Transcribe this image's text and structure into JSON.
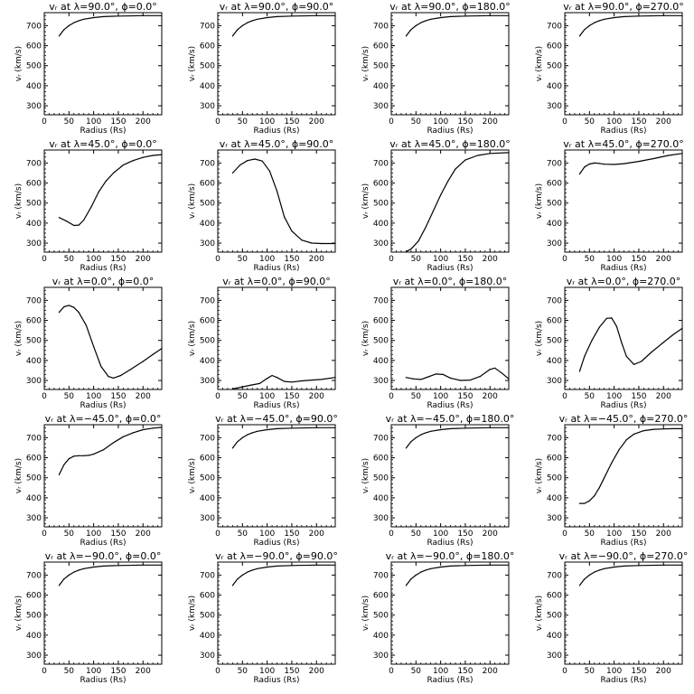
{
  "shared_axes": {
    "xlabel": "Radius (Rs)",
    "ylabel": "vᵣ (km/s)",
    "xlim": [
      0,
      238
    ],
    "ylim": [
      255,
      765
    ],
    "xticks": [
      "0",
      "50",
      "100",
      "150",
      "200"
    ],
    "yticks": [
      "300",
      "400",
      "500",
      "600",
      "700"
    ]
  },
  "chart_data": [
    {
      "type": "line",
      "title": "vᵣ at λ=90.0°, ϕ=0.0°",
      "xlabel": "Radius (Rs)",
      "ylabel": "vᵣ (km/s)",
      "xlim": [
        0,
        238
      ],
      "ylim": [
        255,
        765
      ],
      "x": [
        30,
        40,
        50,
        60,
        70,
        80,
        100,
        120,
        150,
        200,
        238
      ],
      "y": [
        648,
        680,
        700,
        715,
        725,
        732,
        740,
        745,
        748,
        750,
        750
      ]
    },
    {
      "type": "line",
      "title": "vᵣ at λ=90.0°, ϕ=90.0°",
      "xlabel": "Radius (Rs)",
      "ylabel": "vᵣ (km/s)",
      "xlim": [
        0,
        238
      ],
      "ylim": [
        255,
        765
      ],
      "x": [
        30,
        40,
        50,
        60,
        70,
        80,
        100,
        120,
        150,
        200,
        238
      ],
      "y": [
        648,
        680,
        700,
        715,
        725,
        732,
        740,
        745,
        748,
        750,
        750
      ]
    },
    {
      "type": "line",
      "title": "vᵣ at λ=90.0°, ϕ=180.0°",
      "xlabel": "Radius (Rs)",
      "ylabel": "vᵣ (km/s)",
      "xlim": [
        0,
        238
      ],
      "ylim": [
        255,
        765
      ],
      "x": [
        30,
        40,
        50,
        60,
        70,
        80,
        100,
        120,
        150,
        200,
        238
      ],
      "y": [
        648,
        680,
        700,
        715,
        725,
        732,
        740,
        745,
        748,
        750,
        750
      ]
    },
    {
      "type": "line",
      "title": "vᵣ at λ=90.0°, ϕ=270.0°",
      "xlabel": "Radius (Rs)",
      "ylabel": "vᵣ (km/s)",
      "xlim": [
        0,
        238
      ],
      "ylim": [
        255,
        765
      ],
      "x": [
        30,
        40,
        50,
        60,
        70,
        80,
        100,
        120,
        150,
        200,
        238
      ],
      "y": [
        648,
        680,
        700,
        715,
        725,
        732,
        740,
        745,
        748,
        750,
        750
      ]
    },
    {
      "type": "line",
      "title": "vᵣ at λ=45.0°, ϕ=0.0°",
      "xlabel": "Radius (Rs)",
      "ylabel": "vᵣ (km/s)",
      "xlim": [
        0,
        238
      ],
      "ylim": [
        255,
        765
      ],
      "x": [
        30,
        45,
        60,
        70,
        80,
        95,
        110,
        125,
        140,
        160,
        180,
        200,
        220,
        238
      ],
      "y": [
        428,
        410,
        388,
        390,
        415,
        480,
        555,
        610,
        650,
        690,
        712,
        728,
        738,
        742
      ]
    },
    {
      "type": "line",
      "title": "vᵣ at λ=45.0°, ϕ=90.0°",
      "xlabel": "Radius (Rs)",
      "ylabel": "vᵣ (km/s)",
      "xlim": [
        0,
        238
      ],
      "ylim": [
        255,
        765
      ],
      "x": [
        30,
        45,
        60,
        75,
        90,
        105,
        120,
        135,
        150,
        170,
        190,
        210,
        238
      ],
      "y": [
        650,
        690,
        712,
        720,
        710,
        660,
        560,
        430,
        360,
        315,
        300,
        298,
        298
      ]
    },
    {
      "type": "line",
      "title": "vᵣ at λ=45.0°, ϕ=180.0°",
      "xlabel": "Radius (Rs)",
      "ylabel": "vᵣ (km/s)",
      "xlim": [
        0,
        238
      ],
      "ylim": [
        255,
        765
      ],
      "x": [
        30,
        40,
        55,
        70,
        85,
        100,
        115,
        130,
        150,
        175,
        200,
        238
      ],
      "y": [
        258,
        270,
        310,
        380,
        460,
        540,
        610,
        670,
        715,
        738,
        748,
        752
      ]
    },
    {
      "type": "line",
      "title": "vᵣ at λ=45.0°, ϕ=270.0°",
      "xlabel": "Radius (Rs)",
      "ylabel": "vᵣ (km/s)",
      "xlim": [
        0,
        238
      ],
      "ylim": [
        255,
        765
      ],
      "x": [
        30,
        40,
        50,
        60,
        70,
        80,
        100,
        120,
        150,
        180,
        210,
        238
      ],
      "y": [
        645,
        680,
        695,
        700,
        698,
        694,
        693,
        697,
        708,
        722,
        738,
        748
      ]
    },
    {
      "type": "line",
      "title": "vᵣ at λ=0.0°, ϕ=0.0°",
      "xlabel": "Radius (Rs)",
      "ylabel": "vᵣ (km/s)",
      "xlim": [
        0,
        238
      ],
      "ylim": [
        255,
        765
      ],
      "x": [
        30,
        40,
        50,
        60,
        70,
        85,
        100,
        115,
        130,
        140,
        155,
        175,
        200,
        220,
        238
      ],
      "y": [
        640,
        668,
        675,
        665,
        640,
        575,
        470,
        370,
        320,
        312,
        325,
        355,
        395,
        430,
        460
      ]
    },
    {
      "type": "line",
      "title": "vᵣ at λ=0.0°, ϕ=90.0°",
      "xlabel": "Radius (Rs)",
      "ylabel": "vᵣ (km/s)",
      "xlim": [
        0,
        238
      ],
      "ylim": [
        255,
        765
      ],
      "x": [
        30,
        50,
        70,
        85,
        100,
        110,
        120,
        135,
        150,
        170,
        190,
        210,
        238
      ],
      "y": [
        258,
        268,
        278,
        285,
        310,
        325,
        315,
        295,
        292,
        298,
        302,
        305,
        315
      ]
    },
    {
      "type": "line",
      "title": "vᵣ at λ=0.0°, ϕ=180.0°",
      "xlabel": "Radius (Rs)",
      "ylabel": "vᵣ (km/s)",
      "xlim": [
        0,
        238
      ],
      "ylim": [
        255,
        765
      ],
      "x": [
        30,
        45,
        60,
        75,
        90,
        105,
        120,
        140,
        160,
        180,
        200,
        210,
        225,
        238
      ],
      "y": [
        315,
        308,
        305,
        318,
        332,
        330,
        312,
        300,
        302,
        320,
        355,
        362,
        335,
        308
      ]
    },
    {
      "type": "line",
      "title": "vᵣ at λ=0.0°, ϕ=270.0°",
      "xlabel": "Radius (Rs)",
      "ylabel": "vᵣ (km/s)",
      "xlim": [
        0,
        238
      ],
      "ylim": [
        255,
        765
      ],
      "x": [
        30,
        40,
        55,
        70,
        85,
        95,
        105,
        115,
        125,
        140,
        155,
        175,
        200,
        220,
        238
      ],
      "y": [
        345,
        420,
        500,
        565,
        610,
        612,
        570,
        490,
        420,
        380,
        395,
        440,
        490,
        530,
        560
      ]
    },
    {
      "type": "line",
      "title": "vᵣ at λ=−45.0°, ϕ=0.0°",
      "xlabel": "Radius (Rs)",
      "ylabel": "vᵣ (km/s)",
      "xlim": [
        0,
        238
      ],
      "ylim": [
        255,
        765
      ],
      "x": [
        30,
        40,
        50,
        60,
        70,
        80,
        90,
        100,
        120,
        140,
        160,
        180,
        200,
        220,
        238
      ],
      "y": [
        515,
        565,
        595,
        608,
        610,
        610,
        612,
        618,
        640,
        675,
        705,
        725,
        740,
        748,
        752
      ]
    },
    {
      "type": "line",
      "title": "vᵣ at λ=−45.0°, ϕ=90.0°",
      "xlabel": "Radius (Rs)",
      "ylabel": "vᵣ (km/s)",
      "xlim": [
        0,
        238
      ],
      "ylim": [
        255,
        765
      ],
      "x": [
        30,
        40,
        50,
        60,
        70,
        80,
        100,
        120,
        150,
        200,
        238
      ],
      "y": [
        648,
        680,
        700,
        715,
        725,
        732,
        740,
        745,
        748,
        750,
        750
      ]
    },
    {
      "type": "line",
      "title": "vᵣ at λ=−45.0°, ϕ=180.0°",
      "xlabel": "Radius (Rs)",
      "ylabel": "vᵣ (km/s)",
      "xlim": [
        0,
        238
      ],
      "ylim": [
        255,
        765
      ],
      "x": [
        30,
        40,
        50,
        60,
        70,
        80,
        100,
        120,
        150,
        200,
        238
      ],
      "y": [
        648,
        680,
        700,
        715,
        725,
        732,
        740,
        745,
        748,
        750,
        750
      ]
    },
    {
      "type": "line",
      "title": "vᵣ at λ=−45.0°, ϕ=270.0°",
      "xlabel": "Radius (Rs)",
      "ylabel": "vᵣ (km/s)",
      "xlim": [
        0,
        238
      ],
      "ylim": [
        255,
        765
      ],
      "x": [
        30,
        40,
        50,
        60,
        70,
        80,
        95,
        110,
        125,
        140,
        160,
        180,
        200,
        220,
        238
      ],
      "y": [
        372,
        372,
        385,
        410,
        450,
        500,
        575,
        640,
        690,
        718,
        735,
        742,
        744,
        745,
        745
      ]
    },
    {
      "type": "line",
      "title": "vᵣ at λ=−90.0°, ϕ=0.0°",
      "xlabel": "Radius (Rs)",
      "ylabel": "vᵣ (km/s)",
      "xlim": [
        0,
        238
      ],
      "ylim": [
        255,
        765
      ],
      "x": [
        30,
        40,
        50,
        60,
        70,
        80,
        100,
        120,
        150,
        200,
        238
      ],
      "y": [
        648,
        680,
        700,
        715,
        725,
        732,
        740,
        745,
        748,
        750,
        750
      ]
    },
    {
      "type": "line",
      "title": "vᵣ at λ=−90.0°, ϕ=90.0°",
      "xlabel": "Radius (Rs)",
      "ylabel": "vᵣ (km/s)",
      "xlim": [
        0,
        238
      ],
      "ylim": [
        255,
        765
      ],
      "x": [
        30,
        40,
        50,
        60,
        70,
        80,
        100,
        120,
        150,
        200,
        238
      ],
      "y": [
        648,
        680,
        700,
        715,
        725,
        732,
        740,
        745,
        748,
        750,
        750
      ]
    },
    {
      "type": "line",
      "title": "vᵣ at λ=−90.0°, ϕ=180.0°",
      "xlabel": "Radius (Rs)",
      "ylabel": "vᵣ (km/s)",
      "xlim": [
        0,
        238
      ],
      "ylim": [
        255,
        765
      ],
      "x": [
        30,
        40,
        50,
        60,
        70,
        80,
        100,
        120,
        150,
        200,
        238
      ],
      "y": [
        648,
        680,
        700,
        715,
        725,
        732,
        740,
        745,
        748,
        750,
        750
      ]
    },
    {
      "type": "line",
      "title": "vᵣ at λ=−90.0°, ϕ=270.0°",
      "xlabel": "Radius (Rs)",
      "ylabel": "vᵣ (km/s)",
      "xlim": [
        0,
        238
      ],
      "ylim": [
        255,
        765
      ],
      "x": [
        30,
        40,
        50,
        60,
        70,
        80,
        100,
        120,
        150,
        200,
        238
      ],
      "y": [
        648,
        680,
        700,
        715,
        725,
        732,
        740,
        745,
        748,
        750,
        750
      ]
    }
  ]
}
